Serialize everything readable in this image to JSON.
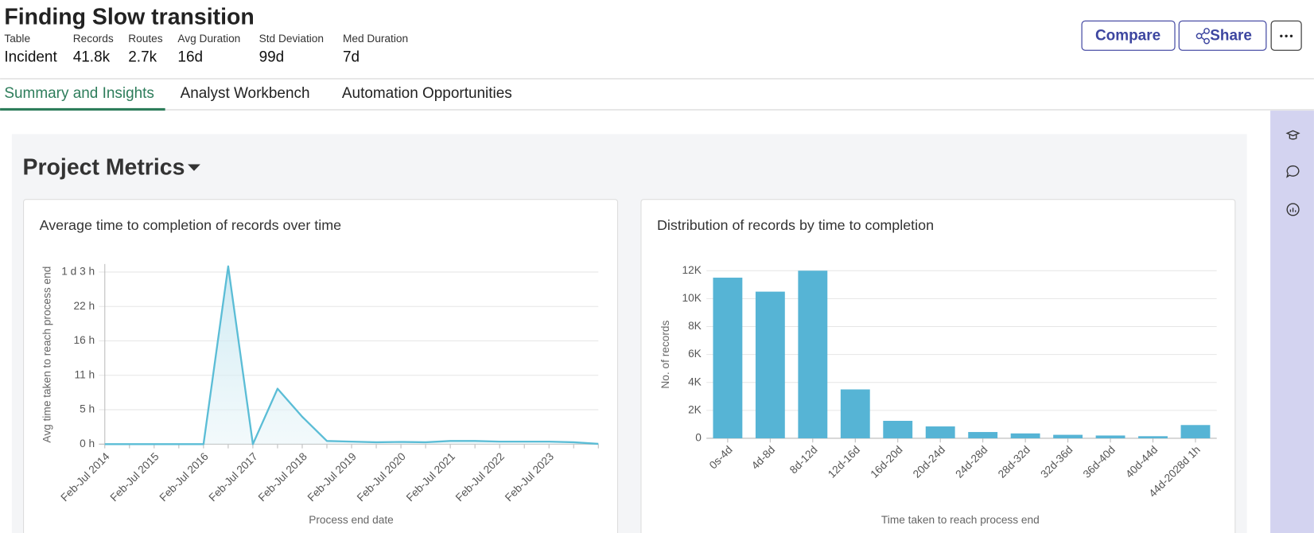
{
  "header": {
    "title": "Finding Slow transition",
    "stats": [
      {
        "label": "Table",
        "value": "Incident"
      },
      {
        "label": "Records",
        "value": "41.8k"
      },
      {
        "label": "Routes",
        "value": "2.7k"
      },
      {
        "label": "Avg Duration",
        "value": "16d"
      },
      {
        "label": "Std Deviation",
        "value": "99d"
      },
      {
        "label": "Med Duration",
        "value": "7d"
      }
    ],
    "buttons": [
      "Compare",
      "Share"
    ]
  },
  "tabs": [
    "Summary and Insights",
    "Analyst Workbench",
    "Automation Opportunities"
  ],
  "section_title": "Project Metrics",
  "chart_data": [
    {
      "type": "line",
      "title": "Average time to completion of records over time",
      "x_label": "Process end date",
      "y_label": "Avg time taken to reach process end",
      "categories": [
        "Feb-Jul 2014",
        null,
        "Feb-Jul 2015",
        null,
        "Feb-Jul 2016",
        null,
        "Feb-Jul 2017",
        null,
        "Feb-Jul 2018",
        null,
        "Feb-Jul 2019",
        null,
        "Feb-Jul 2020",
        null,
        "Feb-Jul 2021",
        null,
        "Feb-Jul 2022",
        null,
        "Feb-Jul 2023",
        null,
        null
      ],
      "values": [
        0,
        0,
        0,
        0,
        0,
        27.9,
        0,
        8.7,
        4.3,
        0.5,
        0.4,
        0.3,
        0.35,
        0.3,
        0.5,
        0.5,
        0.4,
        0.4,
        0.4,
        0.3,
        0.05
      ],
      "color": "#5bbdd6",
      "ylim": [
        0,
        28
      ],
      "yticks": [
        {
          "value": 0,
          "label": "0 h"
        },
        {
          "value": 5.4,
          "label": "5 h"
        },
        {
          "value": 10.8,
          "label": "11 h"
        },
        {
          "value": 16.2,
          "label": "16 h"
        },
        {
          "value": 21.6,
          "label": "22 h"
        },
        {
          "value": 27,
          "label": "1 d 3 h"
        }
      ],
      "grid": true
    },
    {
      "type": "bar",
      "title": "Distribution of records by time to completion",
      "x_label": "Time taken to reach process end",
      "y_label": "No. of records",
      "categories": [
        "0s-4d",
        "4d-8d",
        "8d-12d",
        "12d-16d",
        "16d-20d",
        "20d-24d",
        "24d-28d",
        "28d-32d",
        "32d-36d",
        "36d-40d",
        "40d-44d",
        "44d-2028d 1h"
      ],
      "values": [
        11500,
        10500,
        12000,
        3500,
        1250,
        850,
        450,
        350,
        250,
        200,
        150,
        950
      ],
      "color": "#56b4d5",
      "ylim": [
        0,
        12000
      ],
      "yticks": [
        0,
        {
          "value": 2000,
          "label": "2K"
        },
        {
          "value": 4000,
          "label": "4K"
        },
        {
          "value": 6000,
          "label": "6K"
        },
        {
          "value": 8000,
          "label": "8K"
        },
        {
          "value": 10000,
          "label": "10K"
        },
        {
          "value": 12000,
          "label": "12K"
        }
      ],
      "grid": true
    }
  ]
}
